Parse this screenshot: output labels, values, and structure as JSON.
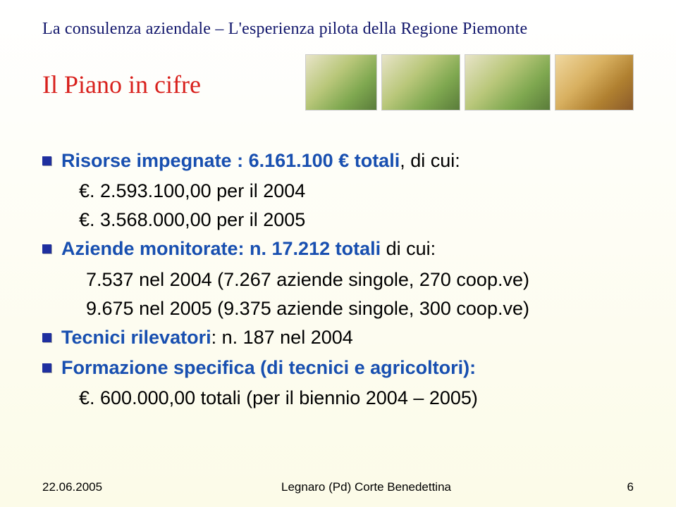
{
  "header": "La consulenza aziendale – L'esperienza pilota della Regione Piemonte",
  "title": "Il Piano in cifre",
  "bullets": {
    "b1_label": "Risorse impegnate",
    "b1_rest": " : 6.161.100 € totali",
    "b1_tail": ", di cui:",
    "b1_s1": "€. 2.593.100,00 per il 2004",
    "b1_s2": "€. 3.568.000,00 per il 2005",
    "b2_label": "Aziende monitorate",
    "b2_rest": ": n. 17.212 totali",
    "b2_tail": " di cui:",
    "b2_s1": "7.537 nel 2004 (7.267 aziende singole, 270 coop.ve)",
    "b2_s2": "9.675 nel 2005 (9.375 aziende singole, 300 coop.ve)",
    "b3_label": "Tecnici rilevatori",
    "b3_rest": ": n. 187 nel 2004",
    "b4_label": "Formazione specifica (di tecnici e agricoltori)",
    "b4_rest": ":",
    "b4_s1": "€. 600.000,00 totali (per il biennio 2004 – 2005)"
  },
  "footer": {
    "date": "22.06.2005",
    "place": "Legnaro (Pd) Corte Benedettina",
    "page": "6"
  },
  "colors": {
    "header_color": "#11166b",
    "title_color": "#d8211d",
    "bullet_blue": "#184fb0",
    "square_color": "#1f2f9f",
    "bg_bottom": "#fcfbe8"
  }
}
